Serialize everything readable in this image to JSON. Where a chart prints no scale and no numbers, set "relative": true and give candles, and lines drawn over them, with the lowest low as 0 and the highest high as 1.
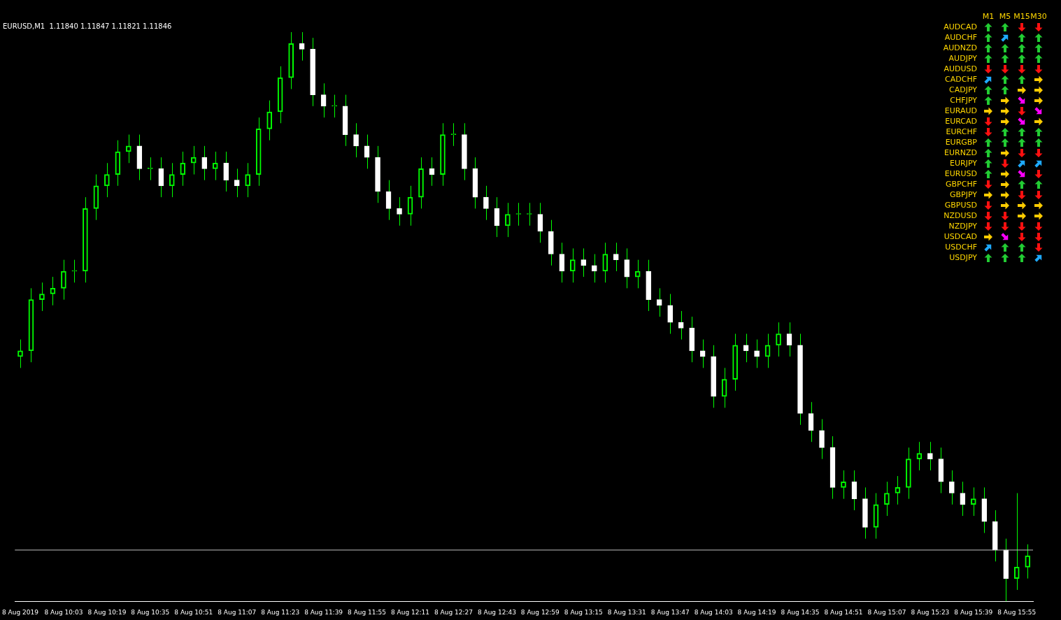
{
  "chart_data": [
    {
      "type": "candlestick",
      "title": "EURUSD,M1  1.11840 1.11847 1.11821 1.11846",
      "relative": true,
      "color": "#00ff00",
      "categories": [
        "8 Aug 2019",
        null,
        null,
        null,
        "8 Aug 10:03",
        null,
        null,
        null,
        "8 Aug 10:19",
        null,
        null,
        null,
        "8 Aug 10:35",
        null,
        null,
        null,
        "8 Aug 10:51",
        null,
        null,
        null,
        "8 Aug 11:07",
        null,
        null,
        null,
        "8 Aug 11:23",
        null,
        null,
        null,
        "8 Aug 11:39",
        null,
        null,
        null,
        "8 Aug 11:55",
        null,
        null,
        null,
        "8 Aug 12:11",
        null,
        null,
        null,
        "8 Aug 12:27",
        null,
        null,
        null,
        "8 Aug 12:43",
        null,
        null,
        null,
        "8 Aug 12:59",
        null,
        null,
        null,
        "8 Aug 13:15",
        null,
        null,
        null,
        "8 Aug 13:31",
        null,
        null,
        null,
        "8 Aug 13:47",
        null,
        null,
        null,
        "8 Aug 14:03",
        null,
        null,
        null,
        "8 Aug 14:19",
        null,
        null,
        null,
        "8 Aug 14:35",
        null,
        null,
        null,
        "8 Aug 14:51",
        null,
        null,
        null,
        "8 Aug 15:07",
        null,
        null,
        null,
        "8 Aug 15:23",
        null,
        null,
        null,
        "8 Aug 15:39",
        null,
        null,
        null,
        "8 Aug 15:55",
        null
      ],
      "ohlc": [
        [
          0.43,
          0.46,
          0.41,
          0.44
        ],
        [
          0.44,
          0.55,
          0.42,
          0.53
        ],
        [
          0.53,
          0.56,
          0.51,
          0.54
        ],
        [
          0.54,
          0.57,
          0.52,
          0.55
        ],
        [
          0.55,
          0.6,
          0.53,
          0.58
        ],
        [
          0.58,
          0.6,
          0.56,
          0.58
        ],
        [
          0.58,
          0.71,
          0.56,
          0.69
        ],
        [
          0.69,
          0.75,
          0.67,
          0.73
        ],
        [
          0.73,
          0.77,
          0.71,
          0.75
        ],
        [
          0.75,
          0.81,
          0.73,
          0.79
        ],
        [
          0.79,
          0.82,
          0.77,
          0.8
        ],
        [
          0.8,
          0.82,
          0.74,
          0.76
        ],
        [
          0.76,
          0.78,
          0.74,
          0.76
        ],
        [
          0.76,
          0.78,
          0.71,
          0.73
        ],
        [
          0.73,
          0.77,
          0.71,
          0.75
        ],
        [
          0.75,
          0.79,
          0.73,
          0.77
        ],
        [
          0.77,
          0.8,
          0.75,
          0.78
        ],
        [
          0.78,
          0.8,
          0.74,
          0.76
        ],
        [
          0.76,
          0.79,
          0.74,
          0.77
        ],
        [
          0.77,
          0.79,
          0.72,
          0.74
        ],
        [
          0.74,
          0.76,
          0.71,
          0.73
        ],
        [
          0.73,
          0.77,
          0.71,
          0.75
        ],
        [
          0.75,
          0.85,
          0.73,
          0.83
        ],
        [
          0.83,
          0.88,
          0.81,
          0.86
        ],
        [
          0.86,
          0.94,
          0.84,
          0.92
        ],
        [
          0.92,
          1.0,
          0.9,
          0.98
        ],
        [
          0.98,
          1.0,
          0.95,
          0.97
        ],
        [
          0.97,
          0.99,
          0.87,
          0.89
        ],
        [
          0.89,
          0.91,
          0.85,
          0.87
        ],
        [
          0.87,
          0.89,
          0.85,
          0.87
        ],
        [
          0.87,
          0.89,
          0.8,
          0.82
        ],
        [
          0.82,
          0.84,
          0.78,
          0.8
        ],
        [
          0.8,
          0.82,
          0.76,
          0.78
        ],
        [
          0.78,
          0.8,
          0.7,
          0.72
        ],
        [
          0.72,
          0.74,
          0.67,
          0.69
        ],
        [
          0.69,
          0.71,
          0.66,
          0.68
        ],
        [
          0.68,
          0.73,
          0.66,
          0.71
        ],
        [
          0.71,
          0.78,
          0.69,
          0.76
        ],
        [
          0.76,
          0.78,
          0.73,
          0.75
        ],
        [
          0.75,
          0.84,
          0.73,
          0.82
        ],
        [
          0.82,
          0.84,
          0.8,
          0.82
        ],
        [
          0.82,
          0.84,
          0.74,
          0.76
        ],
        [
          0.76,
          0.78,
          0.69,
          0.71
        ],
        [
          0.71,
          0.73,
          0.67,
          0.69
        ],
        [
          0.69,
          0.71,
          0.64,
          0.66
        ],
        [
          0.66,
          0.7,
          0.64,
          0.68
        ],
        [
          0.68,
          0.7,
          0.66,
          0.68
        ],
        [
          0.68,
          0.7,
          0.66,
          0.68
        ],
        [
          0.68,
          0.7,
          0.63,
          0.65
        ],
        [
          0.65,
          0.67,
          0.59,
          0.61
        ],
        [
          0.61,
          0.63,
          0.56,
          0.58
        ],
        [
          0.58,
          0.62,
          0.56,
          0.6
        ],
        [
          0.6,
          0.62,
          0.57,
          0.59
        ],
        [
          0.59,
          0.61,
          0.56,
          0.58
        ],
        [
          0.58,
          0.63,
          0.56,
          0.61
        ],
        [
          0.61,
          0.63,
          0.58,
          0.6
        ],
        [
          0.6,
          0.62,
          0.55,
          0.57
        ],
        [
          0.57,
          0.6,
          0.55,
          0.58
        ],
        [
          0.58,
          0.6,
          0.51,
          0.53
        ],
        [
          0.53,
          0.55,
          0.5,
          0.52
        ],
        [
          0.52,
          0.54,
          0.47,
          0.49
        ],
        [
          0.49,
          0.51,
          0.46,
          0.48
        ],
        [
          0.48,
          0.5,
          0.42,
          0.44
        ],
        [
          0.44,
          0.46,
          0.41,
          0.43
        ],
        [
          0.43,
          0.45,
          0.34,
          0.36
        ],
        [
          0.36,
          0.41,
          0.34,
          0.39
        ],
        [
          0.39,
          0.47,
          0.37,
          0.45
        ],
        [
          0.45,
          0.47,
          0.42,
          0.44
        ],
        [
          0.44,
          0.46,
          0.41,
          0.43
        ],
        [
          0.43,
          0.47,
          0.41,
          0.45
        ],
        [
          0.45,
          0.49,
          0.43,
          0.47
        ],
        [
          0.47,
          0.49,
          0.43,
          0.45
        ],
        [
          0.45,
          0.47,
          0.31,
          0.33
        ],
        [
          0.33,
          0.35,
          0.28,
          0.3
        ],
        [
          0.3,
          0.32,
          0.25,
          0.27
        ],
        [
          0.27,
          0.29,
          0.18,
          0.2
        ],
        [
          0.2,
          0.23,
          0.18,
          0.21
        ],
        [
          0.21,
          0.23,
          0.16,
          0.18
        ],
        [
          0.18,
          0.2,
          0.11,
          0.13
        ],
        [
          0.13,
          0.19,
          0.11,
          0.17
        ],
        [
          0.17,
          0.21,
          0.15,
          0.19
        ],
        [
          0.19,
          0.22,
          0.17,
          0.2
        ],
        [
          0.2,
          0.27,
          0.18,
          0.25
        ],
        [
          0.25,
          0.28,
          0.23,
          0.26
        ],
        [
          0.26,
          0.28,
          0.23,
          0.25
        ],
        [
          0.25,
          0.27,
          0.19,
          0.21
        ],
        [
          0.21,
          0.23,
          0.17,
          0.19
        ],
        [
          0.19,
          0.21,
          0.15,
          0.17
        ],
        [
          0.17,
          0.2,
          0.15,
          0.18
        ],
        [
          0.18,
          0.2,
          0.12,
          0.14
        ],
        [
          0.14,
          0.16,
          0.07,
          0.09
        ],
        [
          0.09,
          0.11,
          0.0,
          0.04
        ],
        [
          0.04,
          0.19,
          0.02,
          0.06
        ],
        [
          0.06,
          0.1,
          0.04,
          0.08
        ]
      ],
      "colors": [
        "#00ff00",
        "#00ff00",
        "#00ff00",
        "#00ff00",
        "#00ff00",
        "#00ff00",
        "#00ff00",
        "#00ff00",
        "#00ff00",
        "#00ff00",
        "#00ff00",
        "#ffffff",
        "#00ff00",
        "#ffffff",
        "#00ff00",
        "#00ff00",
        "#00ff00",
        "#ffffff",
        "#00ff00",
        "#ffffff",
        "#ffffff",
        "#00ff00",
        "#00ff00",
        "#00ff00",
        "#00ff00",
        "#00ff00",
        "#ffffff",
        "#ffffff",
        "#ffffff",
        "#00ff00",
        "#ffffff",
        "#ffffff",
        "#ffffff",
        "#ffffff",
        "#ffffff",
        "#ffffff",
        "#00ff00",
        "#00ff00",
        "#ffffff",
        "#00ff00",
        "#00ff00",
        "#ffffff",
        "#ffffff",
        "#ffffff",
        "#ffffff",
        "#00ff00",
        "#00ff00",
        "#00ff00",
        "#ffffff",
        "#ffffff",
        "#ffffff",
        "#00ff00",
        "#ffffff",
        "#ffffff",
        "#00ff00",
        "#ffffff",
        "#ffffff",
        "#00ff00",
        "#ffffff",
        "#ffffff",
        "#ffffff",
        "#ffffff",
        "#ffffff",
        "#ffffff",
        "#ffffff",
        "#00ff00",
        "#00ff00",
        "#ffffff",
        "#ffffff",
        "#00ff00",
        "#00ff00",
        "#ffffff",
        "#ffffff",
        "#ffffff",
        "#ffffff",
        "#ffffff",
        "#00ff00",
        "#ffffff",
        "#ffffff",
        "#00ff00",
        "#00ff00",
        "#00ff00",
        "#00ff00",
        "#00ff00",
        "#ffffff",
        "#ffffff",
        "#ffffff",
        "#ffffff",
        "#00ff00",
        "#ffffff",
        "#ffffff",
        "#ffffff",
        "#00ff00",
        "#00ff00"
      ],
      "ref_lines": [
        {
          "axis": "y",
          "value": 0.09,
          "color": "#c0c0c0"
        }
      ]
    },
    {
      "type": "other",
      "color": "#ffd700",
      "categories": [
        "M1",
        "M5",
        "M15",
        "M30"
      ],
      "y_categories": [
        "AUDCAD",
        "AUDCHF",
        "AUDNZD",
        "AUDJPY",
        "AUDUSD",
        "CADCHF",
        "CADJPY",
        "CHFJPY",
        "EURAUD",
        "EURCAD",
        "EURCHF",
        "EURGBP",
        "EURNZD",
        "EURJPY",
        "EURUSD",
        "GBPCHF",
        "GBPJPY",
        "GBPUSD",
        "NZDUSD",
        "NZDJPY",
        "USDCAD",
        "USDCHF",
        "USDJPY"
      ]
    }
  ]
}
